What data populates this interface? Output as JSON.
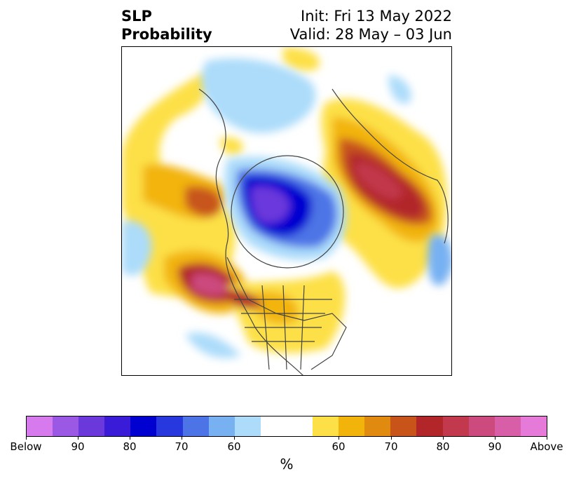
{
  "title": {
    "left_line1": "SLP",
    "left_line2": "Probability",
    "init": "Init: Fri 13 May 2022",
    "valid": "Valid: 28 May – 03 Jun"
  },
  "colors": {
    "below": [
      "#d77aee",
      "#9b58e4",
      "#6b38dc",
      "#3a1bd8",
      "#0000d0",
      "#2638de",
      "#4d74e6",
      "#77b1f2",
      "#acdcfa"
    ],
    "neutral": "#ffffff",
    "above": [
      "#fde047",
      "#f2b40a",
      "#e08a10",
      "#c8541a",
      "#b2262a",
      "#c2384c",
      "#cc4a7e",
      "#d85ea8",
      "#e57ad8"
    ]
  },
  "colorbar": {
    "tick_labels": [
      "Below",
      "90",
      "80",
      "70",
      "60",
      "60",
      "70",
      "80",
      "90",
      "Above"
    ],
    "unit": "%"
  }
}
